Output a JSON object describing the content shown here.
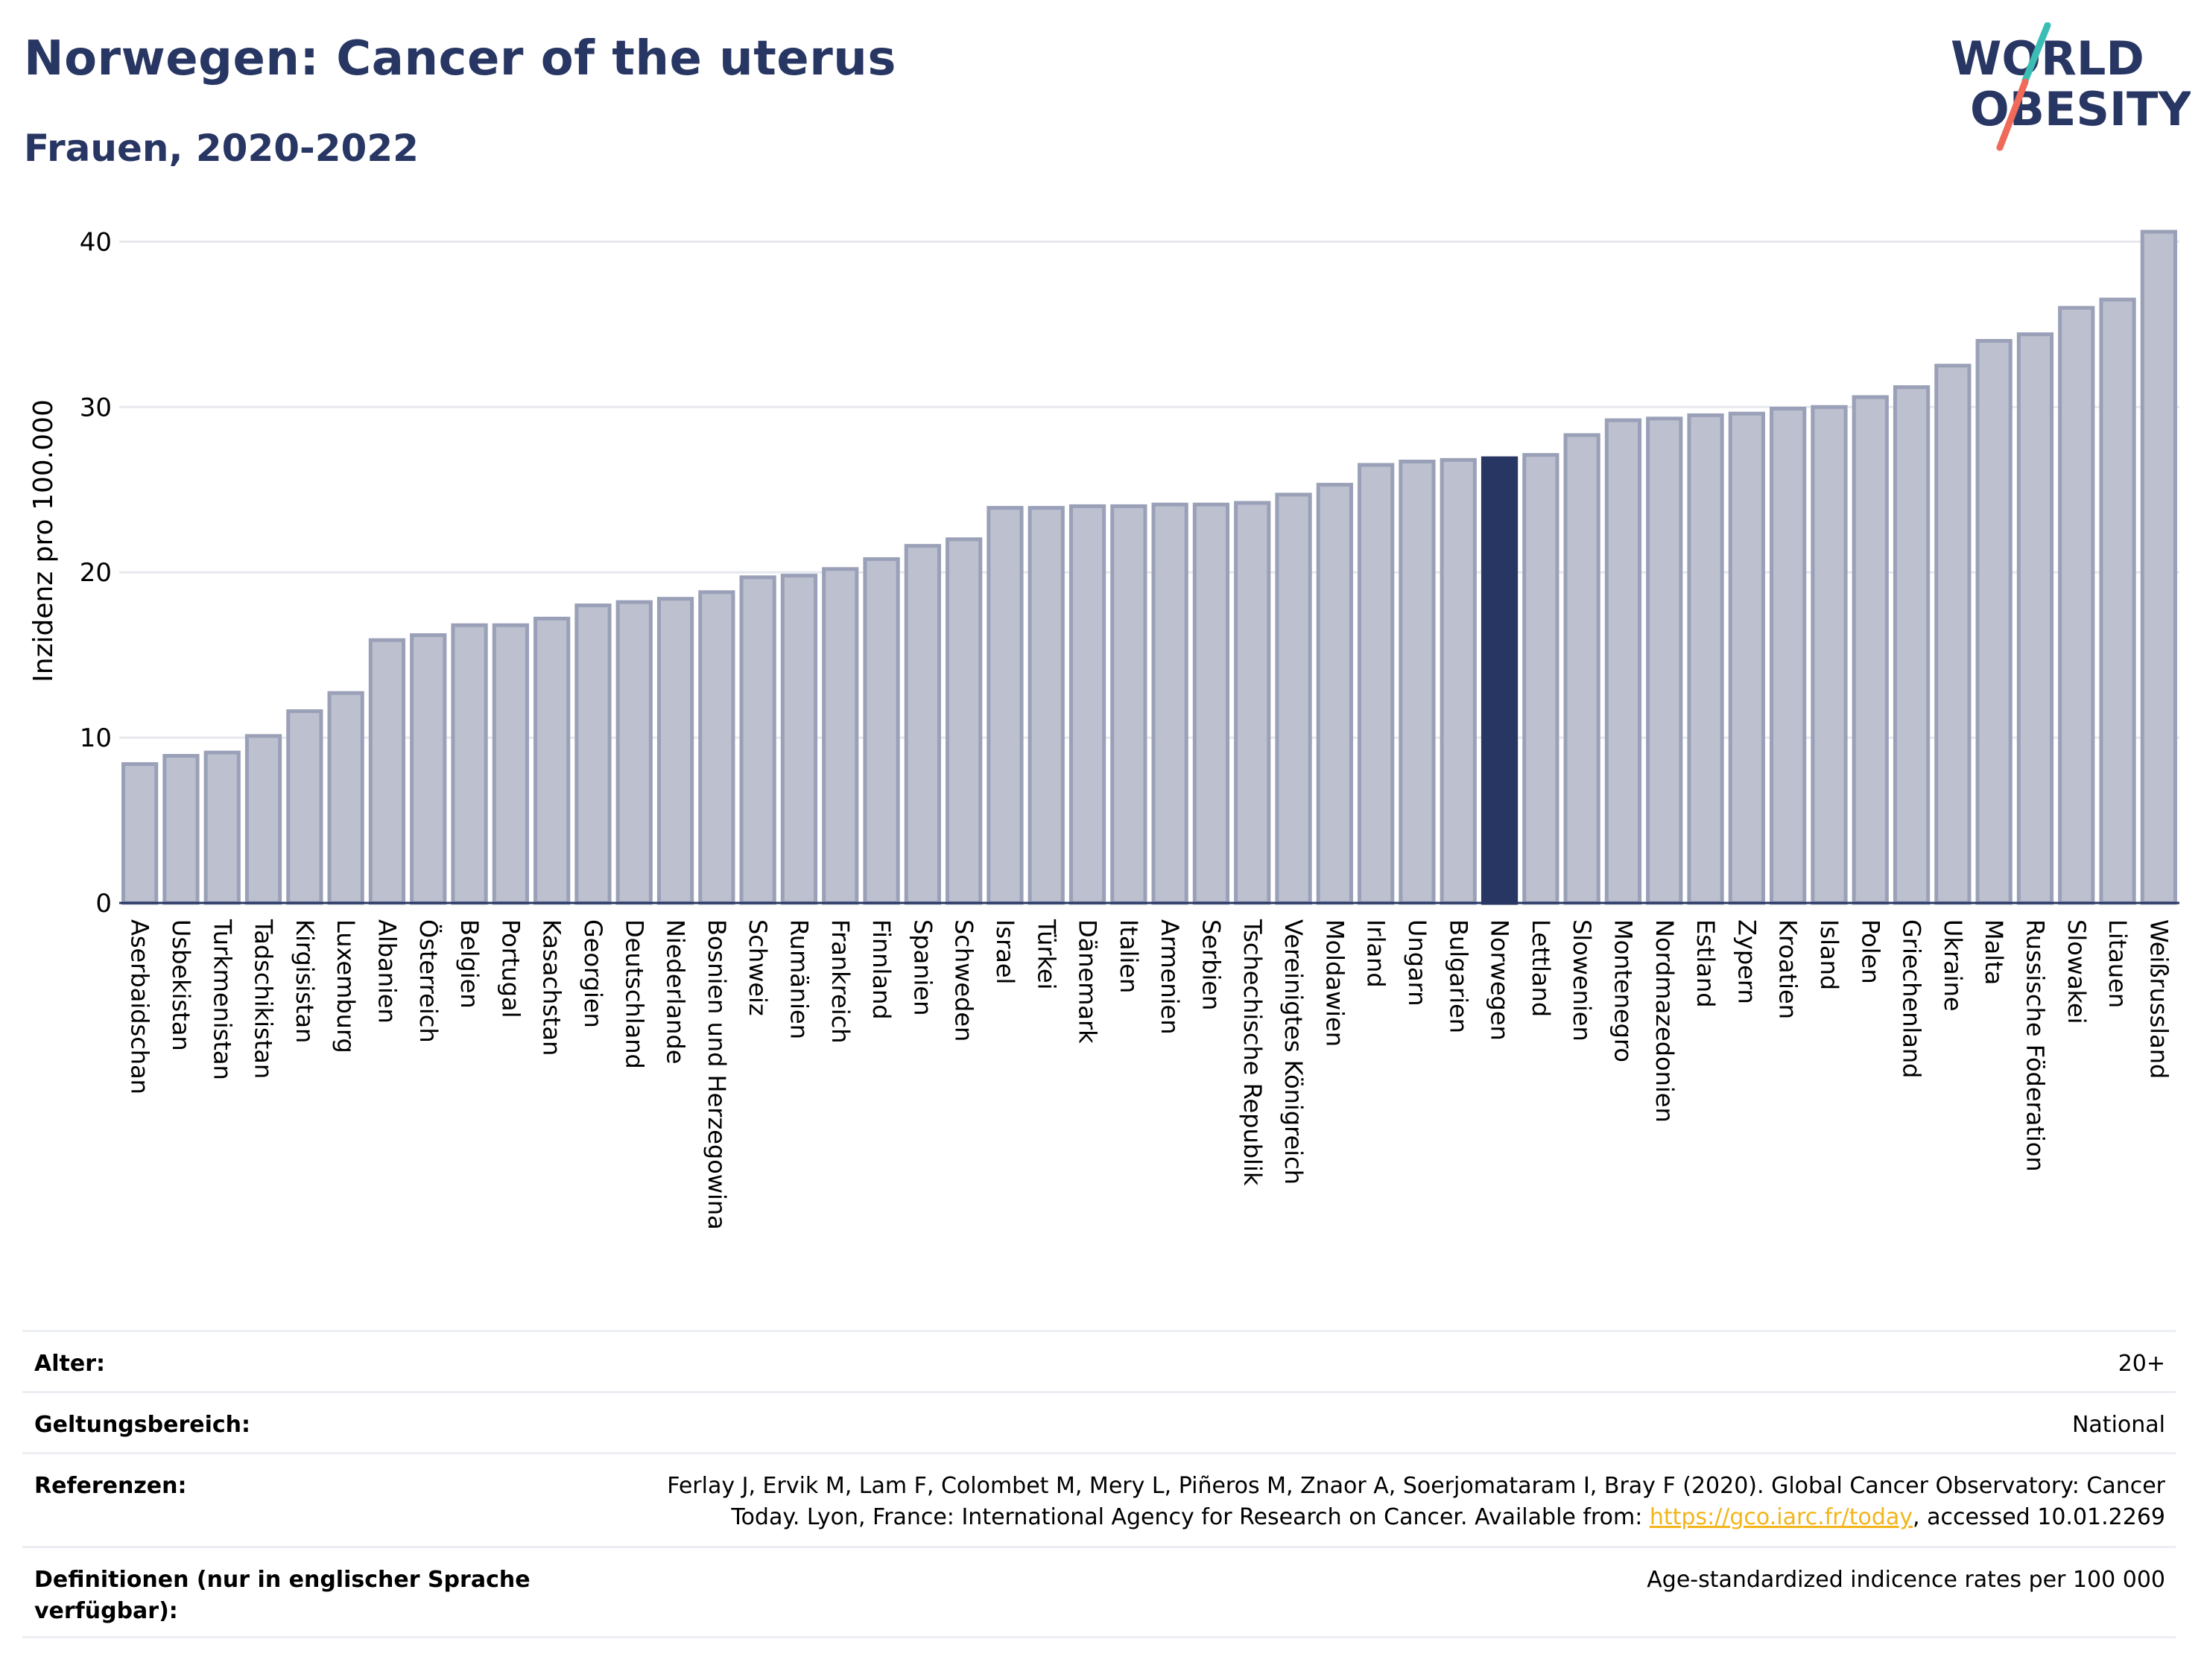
{
  "header": {
    "title": "Norwegen: Cancer of the uterus",
    "subtitle": "Frauen, 2020-2022",
    "logo_line1": "WORLD",
    "logo_line2": "OBESITY"
  },
  "colors": {
    "title": "#283663",
    "bar": "#bcc0cf",
    "bar_stroke": "#9aa0b7",
    "highlight": "#283663",
    "link": "#f2b51c",
    "logo_teal": "#3bbdb5",
    "logo_coral": "#ef6a5a"
  },
  "chart_data": {
    "type": "bar",
    "ylabel": "Inzidenz pro 100.000",
    "ylim": [
      0,
      42
    ],
    "yticks": [
      0,
      10,
      20,
      30,
      40
    ],
    "grid": true,
    "highlight": "Norwegen",
    "categories": [
      "Aserbaidschan",
      "Usbekistan",
      "Turkmenistan",
      "Tadschikistan",
      "Kirgisistan",
      "Luxemburg",
      "Albanien",
      "Österreich",
      "Belgien",
      "Portugal",
      "Kasachstan",
      "Georgien",
      "Deutschland",
      "Niederlande",
      "Bosnien und Herzegowina",
      "Schweiz",
      "Rumänien",
      "Frankreich",
      "Finnland",
      "Spanien",
      "Schweden",
      "Israel",
      "Türkei",
      "Dänemark",
      "Italien",
      "Armenien",
      "Serbien",
      "Tschechische Republik",
      "Vereinigtes Königreich",
      "Moldawien",
      "Irland",
      "Ungarn",
      "Bulgarien",
      "Norwegen",
      "Lettland",
      "Slowenien",
      "Montenegro",
      "Nordmazedonien",
      "Estland",
      "Zypern",
      "Kroatien",
      "Island",
      "Polen",
      "Griechenland",
      "Ukraine",
      "Malta",
      "Russische Föderation",
      "Slowakei",
      "Litauen",
      "Weißrussland"
    ],
    "values": [
      8.4,
      8.9,
      9.1,
      10.1,
      11.6,
      12.7,
      15.9,
      16.2,
      16.8,
      16.8,
      17.2,
      18.0,
      18.2,
      18.4,
      18.8,
      19.7,
      19.8,
      20.2,
      20.8,
      21.6,
      22.0,
      23.9,
      23.9,
      24.0,
      24.0,
      24.1,
      24.1,
      24.2,
      24.7,
      25.3,
      26.5,
      26.7,
      26.8,
      26.9,
      27.1,
      28.3,
      29.2,
      29.3,
      29.5,
      29.6,
      29.9,
      30.0,
      30.6,
      31.2,
      32.5,
      34.0,
      34.4,
      36.0,
      36.5,
      40.6
    ]
  },
  "meta": {
    "rows": [
      {
        "label": "Alter:",
        "value": "20+"
      },
      {
        "label": "Geltungsbereich:",
        "value": "National"
      },
      {
        "label": "Referenzen:",
        "value_before": "Ferlay J, Ervik M, Lam F, Colombet M, Mery L, Piñeros M, Znaor A, Soerjomataram I, Bray F (2020). Global Cancer Observatory: Cancer Today. Lyon, France: International Agency for Research on Cancer. Available from: ",
        "link": "https://gco.iarc.fr/today",
        "value_after": ", accessed 10.01.2269"
      },
      {
        "label": "Definitionen (nur in englischer Sprache verfügbar):",
        "value": "Age-standardized indicence rates per 100 000"
      }
    ]
  }
}
